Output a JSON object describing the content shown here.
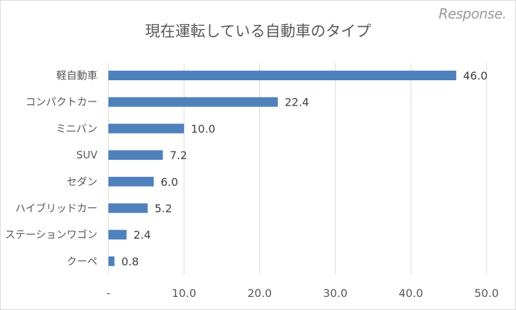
{
  "chart_data": {
    "type": "bar",
    "orientation": "horizontal",
    "title": "現在運転している自動車のタイプ",
    "categories": [
      "軽自動車",
      "コンパクトカー",
      "ミニバン",
      "SUV",
      "セダン",
      "ハイブリッドカー",
      "ステーションワゴン",
      "クーペ"
    ],
    "values": [
      46.0,
      22.4,
      10.0,
      7.2,
      6.0,
      5.2,
      2.4,
      0.8
    ],
    "data_labels": [
      "46.0",
      "22.4",
      "10.0",
      "7.2",
      "6.0",
      "5.2",
      "2.4",
      "0.8"
    ],
    "xlim": [
      0,
      50
    ],
    "x_ticks": [
      0,
      10,
      20,
      30,
      40,
      50
    ],
    "x_tick_labels": [
      "-",
      "10.0",
      "20.0",
      "30.0",
      "40.0",
      "50.0"
    ],
    "grid": "vertical",
    "bar_color": "#4f81bd",
    "xlabel": "",
    "ylabel": ""
  },
  "watermark": "Response."
}
